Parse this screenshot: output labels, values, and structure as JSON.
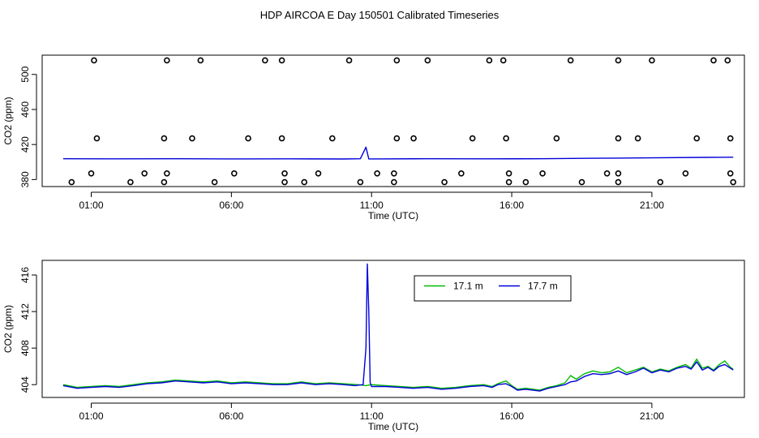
{
  "title": "HDP AIRCOA E  Day 150501  Calibrated Timeseries",
  "colors": {
    "green": "#00bb00",
    "blue": "#0000dd",
    "markers": "#000000"
  },
  "chart_data": [
    {
      "type": "line",
      "xlabel": "Time (UTC)",
      "ylabel": "CO2 (ppm)",
      "xlim": [
        -0.75,
        24.3
      ],
      "ylim": [
        372,
        522
      ],
      "x_ticks": [
        1,
        6,
        11,
        16,
        21
      ],
      "x_tick_labels": [
        "01:00",
        "06:00",
        "11:00",
        "16:00",
        "21:00"
      ],
      "y_ticks": [
        380,
        420,
        460,
        500
      ],
      "y_tick_labels": [
        "380",
        "420",
        "460",
        "500"
      ],
      "grid": false,
      "series": [
        {
          "x": [
            0,
            2,
            4,
            6,
            8,
            10,
            10.6,
            10.8,
            10.9,
            11.1,
            13,
            15,
            17,
            19,
            21,
            23,
            23.9
          ],
          "y": [
            403.8,
            403.7,
            403.8,
            403.6,
            403.7,
            403.5,
            403.8,
            417,
            403.6,
            403.6,
            403.8,
            403.7,
            403.8,
            404.3,
            404.8,
            405.3,
            405.5
          ]
        }
      ],
      "markers": {
        "style": "open-circle",
        "points": [
          {
            "x": 1.2,
            "y": 427
          },
          {
            "x": 3.6,
            "y": 427
          },
          {
            "x": 4.6,
            "y": 427
          },
          {
            "x": 6.6,
            "y": 427
          },
          {
            "x": 7.8,
            "y": 427
          },
          {
            "x": 9.6,
            "y": 427
          },
          {
            "x": 11.9,
            "y": 427
          },
          {
            "x": 12.5,
            "y": 427
          },
          {
            "x": 14.6,
            "y": 427
          },
          {
            "x": 15.8,
            "y": 427
          },
          {
            "x": 17.6,
            "y": 427
          },
          {
            "x": 19.8,
            "y": 427
          },
          {
            "x": 20.5,
            "y": 427
          },
          {
            "x": 22.6,
            "y": 427
          },
          {
            "x": 23.8,
            "y": 427
          },
          {
            "x": 1.1,
            "y": 516
          },
          {
            "x": 3.7,
            "y": 516
          },
          {
            "x": 4.9,
            "y": 516
          },
          {
            "x": 7.2,
            "y": 516
          },
          {
            "x": 7.8,
            "y": 516
          },
          {
            "x": 10.2,
            "y": 516
          },
          {
            "x": 11.9,
            "y": 516
          },
          {
            "x": 13,
            "y": 516
          },
          {
            "x": 15.2,
            "y": 516
          },
          {
            "x": 15.7,
            "y": 516
          },
          {
            "x": 18.1,
            "y": 516
          },
          {
            "x": 19.8,
            "y": 516
          },
          {
            "x": 21,
            "y": 516
          },
          {
            "x": 23.2,
            "y": 516
          },
          {
            "x": 23.7,
            "y": 516
          },
          {
            "x": 0.3,
            "y": 377
          },
          {
            "x": 2.4,
            "y": 377
          },
          {
            "x": 3.6,
            "y": 377
          },
          {
            "x": 5.4,
            "y": 377
          },
          {
            "x": 7.9,
            "y": 377
          },
          {
            "x": 8.6,
            "y": 377
          },
          {
            "x": 10.6,
            "y": 377
          },
          {
            "x": 11.8,
            "y": 377
          },
          {
            "x": 13.6,
            "y": 377
          },
          {
            "x": 15.9,
            "y": 377
          },
          {
            "x": 16.5,
            "y": 377
          },
          {
            "x": 18.5,
            "y": 377
          },
          {
            "x": 19.8,
            "y": 377
          },
          {
            "x": 21.3,
            "y": 377
          },
          {
            "x": 23.9,
            "y": 377
          },
          {
            "x": 1,
            "y": 387
          },
          {
            "x": 2.9,
            "y": 387
          },
          {
            "x": 3.7,
            "y": 387
          },
          {
            "x": 6.1,
            "y": 387
          },
          {
            "x": 7.9,
            "y": 387
          },
          {
            "x": 9.1,
            "y": 387
          },
          {
            "x": 11.2,
            "y": 387
          },
          {
            "x": 11.8,
            "y": 387
          },
          {
            "x": 14.2,
            "y": 387
          },
          {
            "x": 15.9,
            "y": 387
          },
          {
            "x": 17.1,
            "y": 387
          },
          {
            "x": 19.4,
            "y": 387
          },
          {
            "x": 19.8,
            "y": 387
          },
          {
            "x": 22.2,
            "y": 387
          },
          {
            "x": 23.8,
            "y": 387
          }
        ]
      }
    },
    {
      "type": "line",
      "xlabel": "Time (UTC)",
      "ylabel": "CO2 (ppm)",
      "xlim": [
        -0.75,
        24.3
      ],
      "ylim": [
        402.6,
        417.6
      ],
      "x_ticks": [
        1,
        6,
        11,
        16,
        21
      ],
      "x_tick_labels": [
        "01:00",
        "06:00",
        "11:00",
        "16:00",
        "21:00"
      ],
      "y_ticks": [
        404,
        408,
        412,
        416
      ],
      "y_tick_labels": [
        "404",
        "408",
        "412",
        "416"
      ],
      "grid": false,
      "legend": "top-center",
      "series": [
        {
          "name": "17.1 m",
          "color": "green",
          "x": [
            0,
            0.5,
            1,
            1.5,
            2,
            2.5,
            3,
            3.5,
            4,
            4.5,
            5,
            5.5,
            6,
            6.5,
            7,
            7.5,
            8,
            8.5,
            9,
            9.5,
            10,
            10.5,
            10.8,
            11,
            11.5,
            12,
            12.5,
            13,
            13.5,
            14,
            14.5,
            15,
            15.3,
            15.5,
            15.8,
            16,
            16.2,
            16.5,
            17,
            17.3,
            17.6,
            17.9,
            18.1,
            18.3,
            18.6,
            18.9,
            19.2,
            19.5,
            19.8,
            20.1,
            20.4,
            20.7,
            21,
            21.3,
            21.6,
            21.9,
            22.2,
            22.4,
            22.6,
            22.8,
            23,
            23.2,
            23.4,
            23.6,
            23.8,
            23.9
          ],
          "y": [
            404.0,
            403.7,
            403.8,
            403.9,
            403.8,
            404.0,
            404.2,
            404.3,
            404.5,
            404.4,
            404.3,
            404.4,
            404.2,
            404.3,
            404.2,
            404.1,
            404.1,
            404.3,
            404.1,
            404.2,
            404.1,
            404.0,
            403.9,
            404.0,
            403.9,
            403.8,
            403.7,
            403.8,
            403.6,
            403.7,
            403.9,
            404.0,
            403.8,
            404.1,
            404.4,
            403.9,
            403.5,
            403.6,
            403.4,
            403.7,
            403.9,
            404.2,
            405.0,
            404.6,
            405.2,
            405.5,
            405.3,
            405.4,
            405.9,
            405.3,
            405.6,
            405.9,
            405.4,
            405.7,
            405.5,
            405.9,
            406.2,
            405.8,
            406.8,
            405.8,
            406.0,
            405.6,
            406.2,
            406.6,
            405.9,
            405.7
          ]
        },
        {
          "name": "17.7 m",
          "color": "blue",
          "x": [
            0,
            0.5,
            1,
            1.5,
            2,
            2.5,
            3,
            3.5,
            4,
            4.5,
            5,
            5.5,
            6,
            6.5,
            7,
            7.5,
            8,
            8.5,
            9,
            9.5,
            10,
            10.4,
            10.7,
            10.8,
            10.85,
            10.9,
            10.95,
            11,
            11.5,
            12,
            12.5,
            13,
            13.5,
            14,
            14.5,
            15,
            15.3,
            15.5,
            15.8,
            16,
            16.2,
            16.5,
            17,
            17.3,
            17.6,
            17.9,
            18.1,
            18.3,
            18.6,
            18.9,
            19.2,
            19.5,
            19.8,
            20.1,
            20.4,
            20.7,
            21,
            21.3,
            21.6,
            21.9,
            22.2,
            22.4,
            22.6,
            22.8,
            23,
            23.2,
            23.4,
            23.6,
            23.8,
            23.9
          ],
          "y": [
            403.9,
            403.6,
            403.7,
            403.8,
            403.7,
            403.9,
            404.1,
            404.2,
            404.4,
            404.3,
            404.2,
            404.3,
            404.1,
            404.2,
            404.1,
            404.0,
            404.0,
            404.2,
            404.0,
            404.1,
            404.0,
            403.9,
            404.0,
            408.0,
            417.2,
            412.0,
            404.2,
            403.8,
            403.8,
            403.7,
            403.6,
            403.7,
            403.5,
            403.6,
            403.8,
            403.9,
            403.7,
            404.0,
            404.1,
            403.8,
            403.4,
            403.5,
            403.3,
            403.6,
            403.8,
            404.0,
            404.3,
            404.4,
            404.9,
            405.2,
            405.1,
            405.2,
            405.5,
            405.1,
            405.4,
            405.8,
            405.3,
            405.6,
            405.4,
            405.8,
            406.0,
            405.7,
            406.5,
            405.6,
            405.9,
            405.5,
            406.0,
            406.2,
            405.8,
            405.6
          ]
        }
      ]
    }
  ]
}
